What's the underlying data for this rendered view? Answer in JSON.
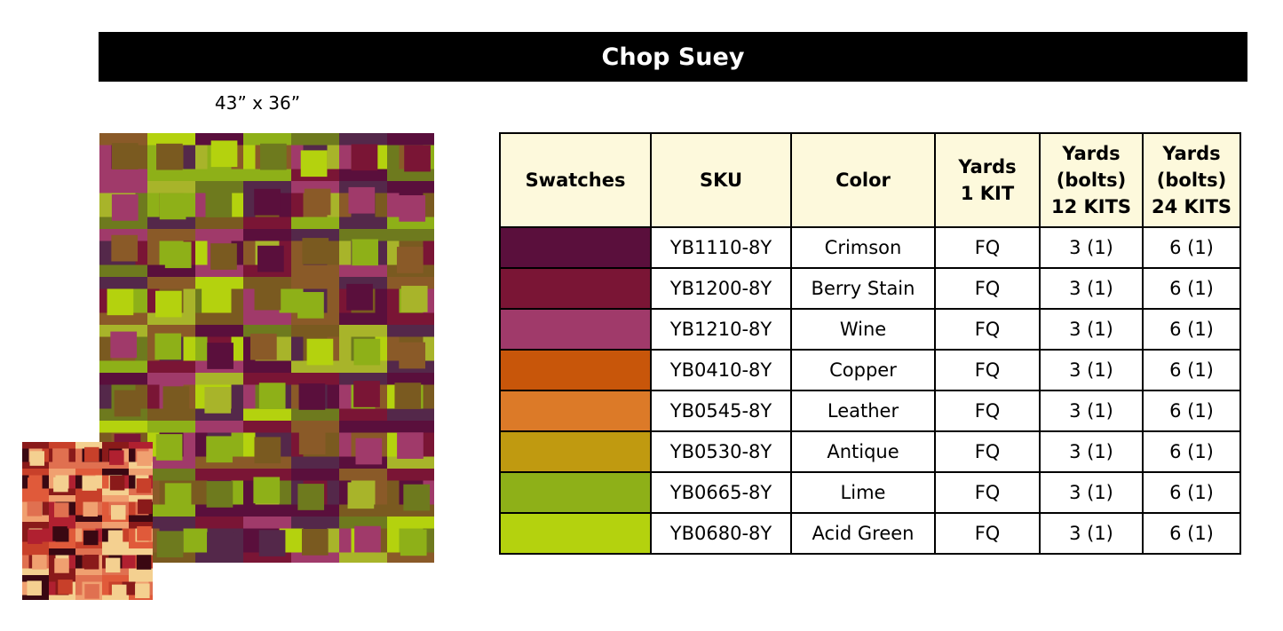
{
  "header": {
    "title": "Chop Suey"
  },
  "quilt": {
    "size": "43” x 36”"
  },
  "table": {
    "headers": [
      [
        "Swatches"
      ],
      [
        "SKU"
      ],
      [
        "Color"
      ],
      [
        "Yards",
        "1 KIT"
      ],
      [
        "Yards",
        "(bolts)",
        "12 KITS"
      ],
      [
        "Yards",
        "(bolts)",
        "24 KITS"
      ]
    ],
    "rows": [
      {
        "swatch": "#5a0f3c",
        "sku": "YB1110-8Y",
        "color": "Crimson",
        "yards": "FQ",
        "bolts12": "3 (1)",
        "bolts24": "6 (1)"
      },
      {
        "swatch": "#7a1535",
        "sku": "YB1200-8Y",
        "color": "Berry Stain",
        "yards": "FQ",
        "bolts12": "3 (1)",
        "bolts24": "6 (1)"
      },
      {
        "swatch": "#a03a6a",
        "sku": "YB1210-8Y",
        "color": "Wine",
        "yards": "FQ",
        "bolts12": "3 (1)",
        "bolts24": "6 (1)"
      },
      {
        "swatch": "#c8560a",
        "sku": "YB0410-8Y",
        "color": "Copper",
        "yards": "FQ",
        "bolts12": "3 (1)",
        "bolts24": "6 (1)"
      },
      {
        "swatch": "#dc7a28",
        "sku": "YB0545-8Y",
        "color": "Leather",
        "yards": "FQ",
        "bolts12": "3 (1)",
        "bolts24": "6 (1)"
      },
      {
        "swatch": "#c09a10",
        "sku": "YB0530-8Y",
        "color": "Antique",
        "yards": "FQ",
        "bolts12": "3 (1)",
        "bolts24": "6 (1)"
      },
      {
        "swatch": "#8eb018",
        "sku": "YB0665-8Y",
        "color": "Lime",
        "yards": "FQ",
        "bolts12": "3 (1)",
        "bolts24": "6 (1)"
      },
      {
        "swatch": "#b4d20e",
        "sku": "YB0680-8Y",
        "color": "Acid Green",
        "yards": "FQ",
        "bolts12": "3 (1)",
        "bolts24": "6 (1)"
      }
    ]
  }
}
